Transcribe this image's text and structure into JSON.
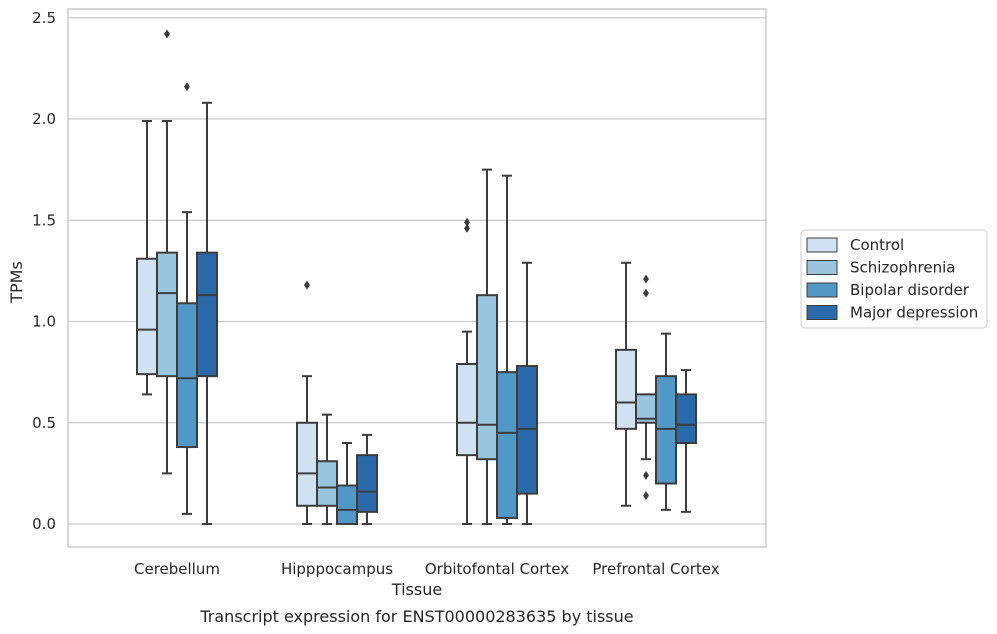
{
  "chart_data": {
    "type": "box",
    "title": "",
    "caption": "Transcript expression for ENST00000283635 by tissue",
    "xlabel": "Tissue",
    "ylabel": "TPMs",
    "ylim": [
      -0.12,
      2.55
    ],
    "yticks": [
      0.0,
      0.5,
      1.0,
      1.5,
      2.0,
      2.5
    ],
    "ytick_labels": [
      "0.0",
      "0.5",
      "1.0",
      "1.5",
      "2.0",
      "2.5"
    ],
    "grid": "horizontal",
    "legend_position": "right",
    "categories": [
      "Cerebellum",
      "Hipppocampus",
      "Orbitofontal Cortex",
      "Prefrontal Cortex"
    ],
    "series": [
      {
        "name": "Control",
        "color": "#d0e1f1",
        "boxes": [
          {
            "whisker_low": 0.64,
            "q1": 0.74,
            "median": 0.96,
            "q3": 1.31,
            "whisker_high": 1.99,
            "outliers": []
          },
          {
            "whisker_low": 0.0,
            "q1": 0.09,
            "median": 0.25,
            "q3": 0.5,
            "whisker_high": 0.73,
            "outliers": [
              1.18
            ]
          },
          {
            "whisker_low": 0.0,
            "q1": 0.34,
            "median": 0.5,
            "q3": 0.79,
            "whisker_high": 0.95,
            "outliers": [
              1.46,
              1.49
            ]
          },
          {
            "whisker_low": 0.09,
            "q1": 0.47,
            "median": 0.6,
            "q3": 0.86,
            "whisker_high": 1.29,
            "outliers": []
          }
        ]
      },
      {
        "name": "Schizophrenia",
        "color": "#9ac5de",
        "boxes": [
          {
            "whisker_low": 0.25,
            "q1": 0.73,
            "median": 1.14,
            "q3": 1.34,
            "whisker_high": 1.99,
            "outliers": [
              2.42
            ]
          },
          {
            "whisker_low": 0.0,
            "q1": 0.09,
            "median": 0.18,
            "q3": 0.31,
            "whisker_high": 0.54,
            "outliers": []
          },
          {
            "whisker_low": 0.0,
            "q1": 0.32,
            "median": 0.49,
            "q3": 1.13,
            "whisker_high": 1.75,
            "outliers": []
          },
          {
            "whisker_low": 0.32,
            "q1": 0.5,
            "median": 0.52,
            "q3": 0.64,
            "whisker_high": 0.64,
            "outliers": [
              1.21,
              1.14,
              0.24,
              0.14
            ]
          }
        ]
      },
      {
        "name": "Bipolar disorder",
        "color": "#5298c6",
        "boxes": [
          {
            "whisker_low": 0.05,
            "q1": 0.38,
            "median": 0.72,
            "q3": 1.09,
            "whisker_high": 1.54,
            "outliers": [
              2.16
            ]
          },
          {
            "whisker_low": 0.0,
            "q1": 0.0,
            "median": 0.07,
            "q3": 0.19,
            "whisker_high": 0.4,
            "outliers": []
          },
          {
            "whisker_low": 0.0,
            "q1": 0.03,
            "median": 0.45,
            "q3": 0.75,
            "whisker_high": 1.72,
            "outliers": []
          },
          {
            "whisker_low": 0.07,
            "q1": 0.2,
            "median": 0.47,
            "q3": 0.73,
            "whisker_high": 0.94,
            "outliers": []
          }
        ]
      },
      {
        "name": "Major depression",
        "color": "#2a6aab",
        "boxes": [
          {
            "whisker_low": 0.0,
            "q1": 0.73,
            "median": 1.13,
            "q3": 1.34,
            "whisker_high": 2.08,
            "outliers": []
          },
          {
            "whisker_low": 0.0,
            "q1": 0.06,
            "median": 0.16,
            "q3": 0.34,
            "whisker_high": 0.44,
            "outliers": []
          },
          {
            "whisker_low": 0.0,
            "q1": 0.15,
            "median": 0.47,
            "q3": 0.78,
            "whisker_high": 1.29,
            "outliers": []
          },
          {
            "whisker_low": 0.06,
            "q1": 0.4,
            "median": 0.49,
            "q3": 0.64,
            "whisker_high": 0.76,
            "outliers": []
          }
        ]
      }
    ]
  }
}
